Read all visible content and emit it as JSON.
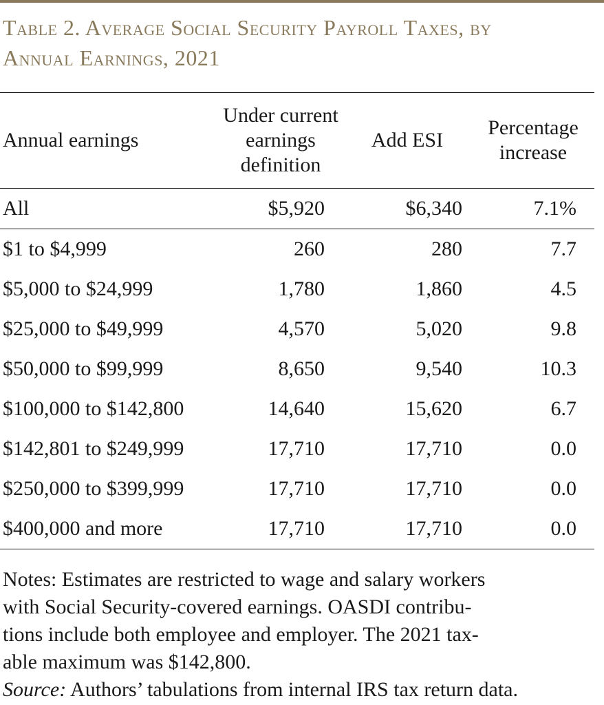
{
  "title": {
    "line1": "Table 2. Average Social Security Payroll Taxes, by",
    "line2": "Annual Earnings, 2021"
  },
  "table": {
    "headers": {
      "col0": [
        "Annual earnings"
      ],
      "col1": [
        "Under current",
        "earnings",
        "definition"
      ],
      "col2": [
        "Add ESI"
      ],
      "col3": [
        "Percentage",
        "increase"
      ]
    },
    "rows": [
      {
        "earnings": "All",
        "current": "$5,920",
        "add_esi": "$6,340",
        "pct": "7.1%"
      },
      {
        "earnings": "$1 to $4,999",
        "current": "260",
        "add_esi": "280",
        "pct": "7.7"
      },
      {
        "earnings": "$5,000 to $24,999",
        "current": "1,780",
        "add_esi": "1,860",
        "pct": "4.5"
      },
      {
        "earnings": "$25,000 to $49,999",
        "current": "4,570",
        "add_esi": "5,020",
        "pct": "9.8"
      },
      {
        "earnings": "$50,000 to $99,999",
        "current": "8,650",
        "add_esi": "9,540",
        "pct": "10.3"
      },
      {
        "earnings": "$100,000 to $142,800",
        "current": "14,640",
        "add_esi": "15,620",
        "pct": "6.7"
      },
      {
        "earnings": "$142,801 to $249,999",
        "current": "17,710",
        "add_esi": "17,710",
        "pct": "0.0"
      },
      {
        "earnings": "$250,000 to $399,999",
        "current": "17,710",
        "add_esi": "17,710",
        "pct": "0.0"
      },
      {
        "earnings": "$400,000 and more",
        "current": "17,710",
        "add_esi": "17,710",
        "pct": "0.0"
      }
    ]
  },
  "notes": {
    "lines": [
      "Notes: Estimates are restricted to wage and salary workers",
      "with Social Security-covered earnings.  OASDI contribu-",
      "tions include both employee and employer.  The 2021 tax-",
      "able maximum was $142,800."
    ],
    "source_label": "Source:",
    "source_text": " Authors’ tabulations from internal IRS tax return data."
  },
  "colors": {
    "accent": "#8a7a5c",
    "text": "#1a1a1a"
  }
}
